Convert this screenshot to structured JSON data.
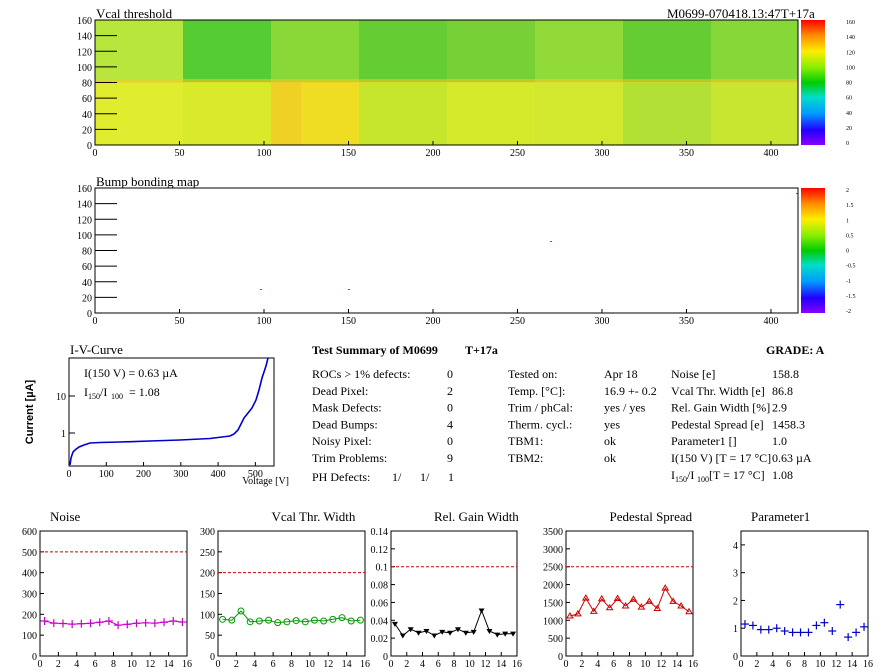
{
  "module_id": "M0699-070418.13:47T+17a",
  "maps": [
    {
      "name": "vcal-threshold-map",
      "title": "Vcal threshold",
      "x_ticks": [
        "0",
        "50",
        "100",
        "150",
        "200",
        "250",
        "300",
        "350",
        "400"
      ],
      "y_ticks": [
        "0",
        "20",
        "40",
        "60",
        "80",
        "100",
        "120",
        "140",
        "160"
      ],
      "palette_labels": [
        "160",
        "140",
        "120",
        "100",
        "80",
        "60",
        "40",
        "20",
        "0"
      ]
    },
    {
      "name": "bump-bonding-map",
      "title": "Bump bonding map",
      "x_ticks": [
        "0",
        "50",
        "100",
        "150",
        "200",
        "250",
        "300",
        "350",
        "400"
      ],
      "y_ticks": [
        "0",
        "20",
        "40",
        "60",
        "80",
        "100",
        "120",
        "140",
        "160"
      ],
      "palette_labels": [
        "2",
        "1.5",
        "1",
        "0.5",
        "0",
        "-0.5",
        "-1",
        "-1.5",
        "-2"
      ]
    }
  ],
  "iv": {
    "title": "I-V-Curve",
    "ylabel": "Current [µA]",
    "xlabel": "Voltage [V]",
    "x_ticks": [
      "0",
      "100",
      "200",
      "300",
      "400",
      "500"
    ],
    "y_ticks": [
      "1",
      "10"
    ],
    "annotation1": "I(150 V) = 0.63 µA",
    "annotation2_main": "I",
    "annotation2_sub1": "150",
    "annotation2_slash": "/I",
    "annotation2_sub2": "100",
    "annotation2_value": "=  1.08"
  },
  "summary": {
    "title": "Test Summary of M0699",
    "tag": "T+17a",
    "grade_label": "GRADE:  A",
    "left_rows": [
      {
        "label": "ROCs > 1% defects:",
        "value": "0"
      },
      {
        "label": "Dead Pixel:",
        "value": "2"
      },
      {
        "label": "Mask Defects:",
        "value": "0"
      },
      {
        "label": "Dead Bumps:",
        "value": "4"
      },
      {
        "label": "Noisy Pixel:",
        "value": "0"
      },
      {
        "label": "Trim Problems:",
        "value": "9"
      }
    ],
    "ph_label": "PH Defects:",
    "ph_values": [
      "1/",
      "1/",
      "1"
    ],
    "ph_colors": [
      "#000000",
      "#cc0000",
      "#0000cc"
    ],
    "mid_rows": [
      {
        "label": "Tested on:",
        "value": "Apr 18"
      },
      {
        "label": "Temp. [°C]:",
        "value": "16.9 +- 0.2"
      },
      {
        "label": "Trim / phCal:",
        "value": "yes / yes"
      },
      {
        "label": "Therm. cycl.:",
        "value": "yes"
      },
      {
        "label": "TBM1:",
        "value": "ok"
      },
      {
        "label": "TBM2:",
        "value": "ok"
      }
    ],
    "right_rows": [
      {
        "label": "Noise [e]",
        "value": "158.8"
      },
      {
        "label": "Vcal Thr. Width [e]",
        "value": "86.8"
      },
      {
        "label": "Rel. Gain Width [%]",
        "value": "2.9"
      },
      {
        "label": "Pedestal Spread [e]",
        "value": "1458.3"
      },
      {
        "label": "Parameter1 []",
        "value": "1.0"
      },
      {
        "label": "I(150 V) [T = 17 °C]",
        "value": "0.63 µA"
      }
    ],
    "ratio_label_main": "I",
    "ratio_label_sub1": "150",
    "ratio_label_slash": "/I",
    "ratio_label_sub2": "100",
    "ratio_label_rest": "  [T = 17 °C]",
    "ratio_value": "1.08"
  },
  "chart_data": [
    {
      "type": "line",
      "title": "Noise",
      "color": "#cc00cc",
      "marker": "plus",
      "connect": true,
      "x": [
        0,
        1,
        2,
        3,
        4,
        5,
        6,
        7,
        8,
        9,
        10,
        11,
        12,
        13,
        14,
        15
      ],
      "values": [
        168,
        158,
        156,
        153,
        155,
        157,
        162,
        168,
        148,
        152,
        157,
        159,
        158,
        162,
        168,
        163
      ],
      "reference": 500,
      "ylim": [
        0,
        600
      ],
      "y_ticks": [
        "0",
        "100",
        "200",
        "300",
        "400",
        "500",
        "600"
      ],
      "x_ticks": [
        "0",
        "2",
        "4",
        "6",
        "8",
        "10",
        "12",
        "14",
        "16"
      ]
    },
    {
      "type": "line",
      "title": "Vcal Thr. Width",
      "color": "#009900",
      "marker": "circle",
      "connect": true,
      "x": [
        0,
        1,
        2,
        3,
        4,
        5,
        6,
        7,
        8,
        9,
        10,
        11,
        12,
        13,
        14,
        15
      ],
      "values": [
        88,
        86,
        108,
        82,
        84,
        86,
        80,
        82,
        85,
        82,
        86,
        84,
        88,
        92,
        84,
        86
      ],
      "reference": 200,
      "ylim": [
        0,
        300
      ],
      "y_ticks": [
        "0",
        "50",
        "100",
        "150",
        "200",
        "250",
        "300"
      ],
      "x_ticks": [
        "0",
        "2",
        "4",
        "6",
        "8",
        "10",
        "12",
        "14",
        "16"
      ]
    },
    {
      "type": "line",
      "title": "Rel. Gain Width",
      "color": "#000000",
      "marker": "tri-down",
      "connect": true,
      "x": [
        0,
        1,
        2,
        3,
        4,
        5,
        6,
        7,
        8,
        9,
        10,
        11,
        12,
        13,
        14,
        15
      ],
      "values": [
        0.036,
        0.023,
        0.03,
        0.026,
        0.028,
        0.023,
        0.027,
        0.026,
        0.03,
        0.026,
        0.027,
        0.051,
        0.028,
        0.024,
        0.025,
        0.025
      ],
      "reference": 0.1,
      "ylim": [
        0,
        0.14
      ],
      "y_ticks": [
        "0",
        "0.02",
        "0.04",
        "0.06",
        "0.08",
        "0.1",
        "0.12",
        "0.14"
      ],
      "x_ticks": [
        "0",
        "2",
        "4",
        "6",
        "8",
        "10",
        "12",
        "14",
        "16"
      ]
    },
    {
      "type": "line",
      "title": "Pedestal Spread",
      "color": "#cc0000",
      "marker": "tri-up",
      "connect": true,
      "x": [
        0,
        1,
        2,
        3,
        4,
        5,
        6,
        7,
        8,
        9,
        10,
        11,
        12,
        13,
        14,
        15
      ],
      "values": [
        1120,
        1180,
        1620,
        1250,
        1600,
        1350,
        1610,
        1400,
        1590,
        1370,
        1530,
        1330,
        1900,
        1530,
        1400,
        1240
      ],
      "reference": 2500,
      "ylim": [
        0,
        3500
      ],
      "y_ticks": [
        "0",
        "500",
        "1000",
        "1500",
        "2000",
        "2500",
        "3000",
        "3500"
      ],
      "x_ticks": [
        "0",
        "2",
        "4",
        "6",
        "8",
        "10",
        "12",
        "14",
        "16"
      ]
    },
    {
      "type": "scatter",
      "title": "Parameter1",
      "color": "#0000cc",
      "marker": "plus",
      "connect": false,
      "x": [
        0,
        1,
        2,
        3,
        4,
        5,
        6,
        7,
        8,
        9,
        10,
        11,
        12,
        13,
        14,
        15
      ],
      "values": [
        1.15,
        1.1,
        0.95,
        0.95,
        1.0,
        0.9,
        0.85,
        0.85,
        0.85,
        1.1,
        1.2,
        0.9,
        1.85,
        0.68,
        0.85,
        1.05
      ],
      "reference": null,
      "ylim": [
        0,
        4.5
      ],
      "y_ticks": [
        "0",
        "1",
        "2",
        "3",
        "4"
      ],
      "x_ticks": [
        "0",
        "2",
        "4",
        "6",
        "8",
        "10",
        "12",
        "14",
        "16"
      ]
    }
  ]
}
